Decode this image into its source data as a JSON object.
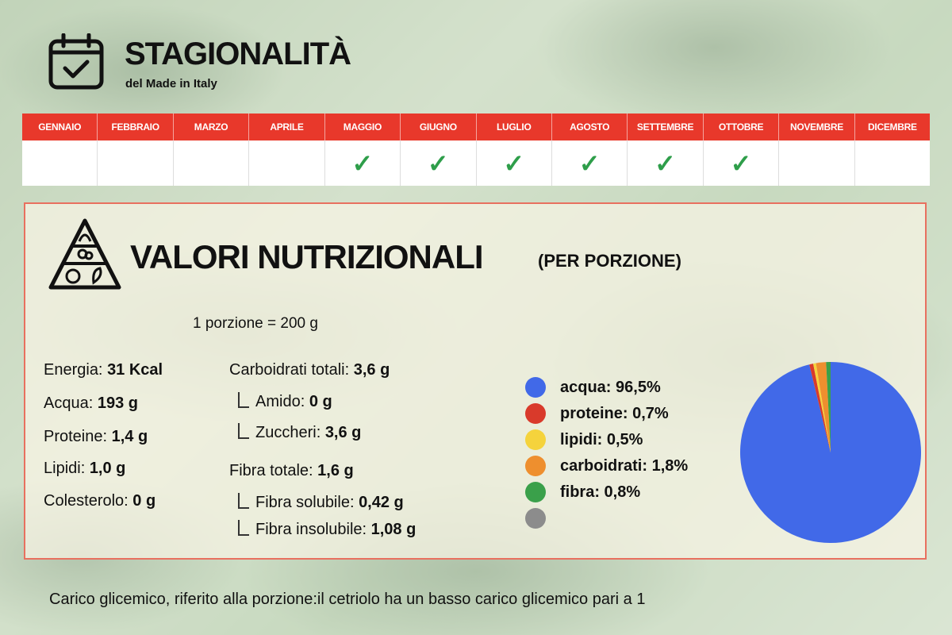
{
  "header": {
    "title": "STAGIONALITÀ",
    "subtitle": "del Made in Italy",
    "icon": "calendar-check-icon"
  },
  "season": {
    "months": [
      {
        "label": "GENNAIO",
        "in_season": false
      },
      {
        "label": "FEBBRAIO",
        "in_season": false
      },
      {
        "label": "MARZO",
        "in_season": false
      },
      {
        "label": "APRILE",
        "in_season": false
      },
      {
        "label": "MAGGIO",
        "in_season": true
      },
      {
        "label": "GIUGNO",
        "in_season": true
      },
      {
        "label": "LUGLIO",
        "in_season": true
      },
      {
        "label": "AGOSTO",
        "in_season": true
      },
      {
        "label": "SETTEMBRE",
        "in_season": true
      },
      {
        "label": "OTTOBRE",
        "in_season": true
      },
      {
        "label": "NOVEMBRE",
        "in_season": false
      },
      {
        "label": "DICEMBRE",
        "in_season": false
      }
    ],
    "check_glyph": "✓",
    "header_color": "#e8382b",
    "check_color": "#2e9e4a"
  },
  "nutrition": {
    "title": "VALORI NUTRIZIONALI",
    "subtitle": "(PER PORZIONE)",
    "icon": "food-pyramid-icon",
    "portion": "1 porzione = 200 g",
    "left_col": [
      {
        "label": "Energia: ",
        "value": "31 Kcal"
      },
      {
        "label": "Acqua: ",
        "value": "193 g"
      },
      {
        "label": "Proteine: ",
        "value": "1,4 g"
      },
      {
        "label": "Lipidi: ",
        "value": "1,0 g"
      },
      {
        "label": "Colesterolo: ",
        "value": "0 g"
      }
    ],
    "right_col": [
      {
        "label": "Carboidrati totali: ",
        "value": "3,6 g",
        "sub": false
      },
      {
        "label": "Amido: ",
        "value": "0 g",
        "sub": true
      },
      {
        "label": "Zuccheri: ",
        "value": "3,6 g",
        "sub": true
      },
      {
        "label": "Fibra totale: ",
        "value": "1,6 g",
        "sub": false
      },
      {
        "label": "Fibra solubile: ",
        "value": "0,42 g",
        "sub": true
      },
      {
        "label": "Fibra insolubile: ",
        "value": "1,08 g",
        "sub": true
      }
    ]
  },
  "chart_data": {
    "type": "pie",
    "slices": [
      {
        "label": "acqua: 96,5%",
        "value": 96.5,
        "color": "#4169e8"
      },
      {
        "label": "proteine: 0,7%",
        "value": 0.7,
        "color": "#d93a2b"
      },
      {
        "label": "lipidi: 0,5%",
        "value": 0.5,
        "color": "#f5d33c"
      },
      {
        "label": "carboidrati: 1,8%",
        "value": 1.8,
        "color": "#ee8f2e"
      },
      {
        "label": "fibra: 0,8%",
        "value": 0.8,
        "color": "#3aa04a"
      },
      {
        "label": "",
        "value": 0,
        "color": "#8c8c8c"
      }
    ]
  },
  "footer": {
    "text": "Carico glicemico, riferito alla porzione:il cetriolo ha un basso carico glicemico pari a 1"
  }
}
